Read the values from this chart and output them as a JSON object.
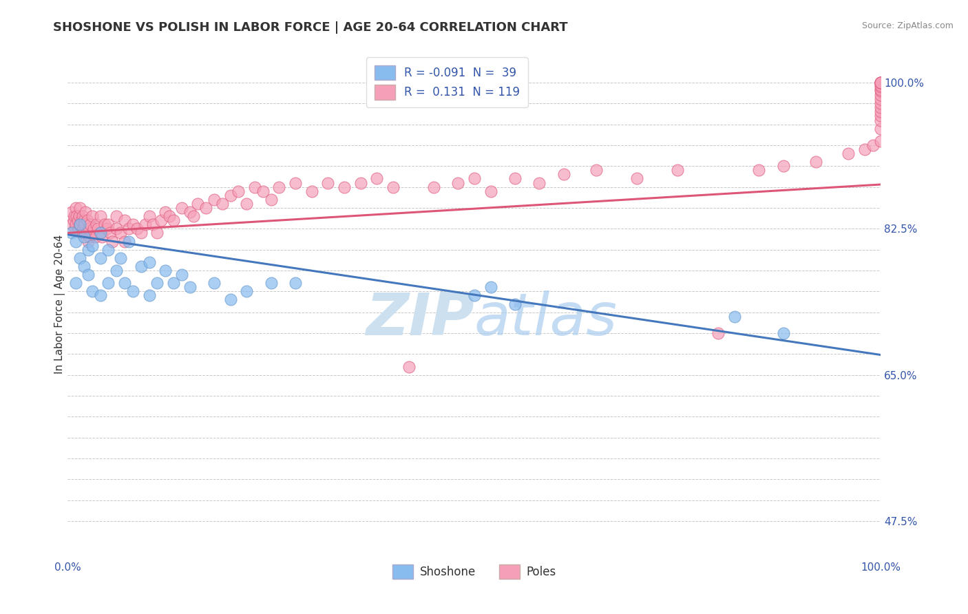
{
  "title": "SHOSHONE VS POLISH IN LABOR FORCE | AGE 20-64 CORRELATION CHART",
  "source_text": "Source: ZipAtlas.com",
  "ylabel": "In Labor Force | Age 20-64",
  "xlim": [
    0,
    1
  ],
  "ylim": [
    0.43,
    1.04
  ],
  "ytick_positions": [
    0.475,
    0.65,
    0.825,
    1.0
  ],
  "ytick_minor": [
    0.5,
    0.525,
    0.55,
    0.575,
    0.6,
    0.625,
    0.675,
    0.7,
    0.725,
    0.75,
    0.775,
    0.8,
    0.85,
    0.875,
    0.9,
    0.925,
    0.95,
    0.975
  ],
  "xtick_positions": [
    0.0,
    0.1,
    0.2,
    0.3,
    0.4,
    0.5,
    0.6,
    0.7,
    0.8,
    0.9,
    1.0
  ],
  "blue_color": "#88bbee",
  "pink_color": "#f5a0b8",
  "blue_edge_color": "#6699cc",
  "pink_edge_color": "#e06080",
  "blue_line_color": "#4477bb",
  "pink_line_color": "#dd5577",
  "background_color": "#ffffff",
  "grid_color": "#c8c8c8",
  "watermark_color": "#cce0f0",
  "legend_r_blue": "-0.091",
  "legend_n_blue": "39",
  "legend_r_pink": "0.131",
  "legend_n_pink": "119",
  "blue_trend_y_start": 0.818,
  "blue_trend_y_end": 0.674,
  "pink_trend_y_start": 0.82,
  "pink_trend_y_end": 0.878,
  "blue_x": [
    0.005,
    0.01,
    0.01,
    0.015,
    0.015,
    0.02,
    0.02,
    0.025,
    0.025,
    0.03,
    0.03,
    0.04,
    0.04,
    0.04,
    0.05,
    0.05,
    0.06,
    0.065,
    0.07,
    0.075,
    0.08,
    0.09,
    0.1,
    0.1,
    0.11,
    0.12,
    0.13,
    0.14,
    0.15,
    0.18,
    0.2,
    0.22,
    0.25,
    0.28,
    0.5,
    0.52,
    0.55,
    0.82,
    0.88
  ],
  "blue_y": [
    0.82,
    0.76,
    0.81,
    0.79,
    0.83,
    0.78,
    0.815,
    0.77,
    0.8,
    0.75,
    0.805,
    0.745,
    0.79,
    0.82,
    0.76,
    0.8,
    0.775,
    0.79,
    0.76,
    0.81,
    0.75,
    0.78,
    0.745,
    0.785,
    0.76,
    0.775,
    0.76,
    0.77,
    0.755,
    0.76,
    0.74,
    0.75,
    0.76,
    0.76,
    0.745,
    0.755,
    0.735,
    0.72,
    0.7
  ],
  "pink_x": [
    0.005,
    0.005,
    0.007,
    0.008,
    0.009,
    0.01,
    0.01,
    0.011,
    0.012,
    0.013,
    0.014,
    0.015,
    0.015,
    0.016,
    0.017,
    0.018,
    0.019,
    0.02,
    0.02,
    0.021,
    0.022,
    0.023,
    0.024,
    0.025,
    0.026,
    0.027,
    0.028,
    0.03,
    0.03,
    0.032,
    0.034,
    0.035,
    0.037,
    0.04,
    0.04,
    0.042,
    0.045,
    0.048,
    0.05,
    0.052,
    0.055,
    0.06,
    0.06,
    0.065,
    0.07,
    0.07,
    0.075,
    0.08,
    0.085,
    0.09,
    0.095,
    0.1,
    0.105,
    0.11,
    0.115,
    0.12,
    0.125,
    0.13,
    0.14,
    0.15,
    0.155,
    0.16,
    0.17,
    0.18,
    0.19,
    0.2,
    0.21,
    0.22,
    0.23,
    0.24,
    0.25,
    0.26,
    0.28,
    0.3,
    0.32,
    0.34,
    0.36,
    0.38,
    0.4,
    0.42,
    0.45,
    0.48,
    0.5,
    0.52,
    0.55,
    0.58,
    0.61,
    0.65,
    0.7,
    0.75,
    0.8,
    0.85,
    0.88,
    0.92,
    0.96,
    0.98,
    0.99,
    1.0,
    1.0,
    1.0,
    1.0,
    1.0,
    1.0,
    1.0,
    1.0,
    1.0,
    1.0,
    1.0,
    1.0,
    1.0,
    1.0,
    1.0,
    1.0,
    1.0,
    1.0
  ],
  "pink_y": [
    0.83,
    0.845,
    0.835,
    0.84,
    0.825,
    0.83,
    0.85,
    0.84,
    0.835,
    0.825,
    0.84,
    0.83,
    0.85,
    0.82,
    0.835,
    0.84,
    0.825,
    0.82,
    0.835,
    0.83,
    0.845,
    0.82,
    0.835,
    0.81,
    0.825,
    0.815,
    0.83,
    0.82,
    0.84,
    0.825,
    0.815,
    0.83,
    0.825,
    0.82,
    0.84,
    0.815,
    0.83,
    0.825,
    0.83,
    0.82,
    0.81,
    0.825,
    0.84,
    0.82,
    0.835,
    0.81,
    0.825,
    0.83,
    0.825,
    0.82,
    0.83,
    0.84,
    0.83,
    0.82,
    0.835,
    0.845,
    0.84,
    0.835,
    0.85,
    0.845,
    0.84,
    0.855,
    0.85,
    0.86,
    0.855,
    0.865,
    0.87,
    0.855,
    0.875,
    0.87,
    0.86,
    0.875,
    0.88,
    0.87,
    0.88,
    0.875,
    0.88,
    0.885,
    0.875,
    0.66,
    0.875,
    0.88,
    0.885,
    0.87,
    0.885,
    0.88,
    0.89,
    0.895,
    0.885,
    0.895,
    0.7,
    0.895,
    0.9,
    0.905,
    0.915,
    0.92,
    0.925,
    0.93,
    0.945,
    0.955,
    0.96,
    0.965,
    0.97,
    0.975,
    0.98,
    0.985,
    0.99,
    0.992,
    0.995,
    0.997,
    1.0,
    1.0,
    1.0,
    1.0,
    1.0
  ],
  "title_fontsize": 13,
  "axis_label_fontsize": 11,
  "tick_fontsize": 11,
  "legend_fontsize": 12
}
